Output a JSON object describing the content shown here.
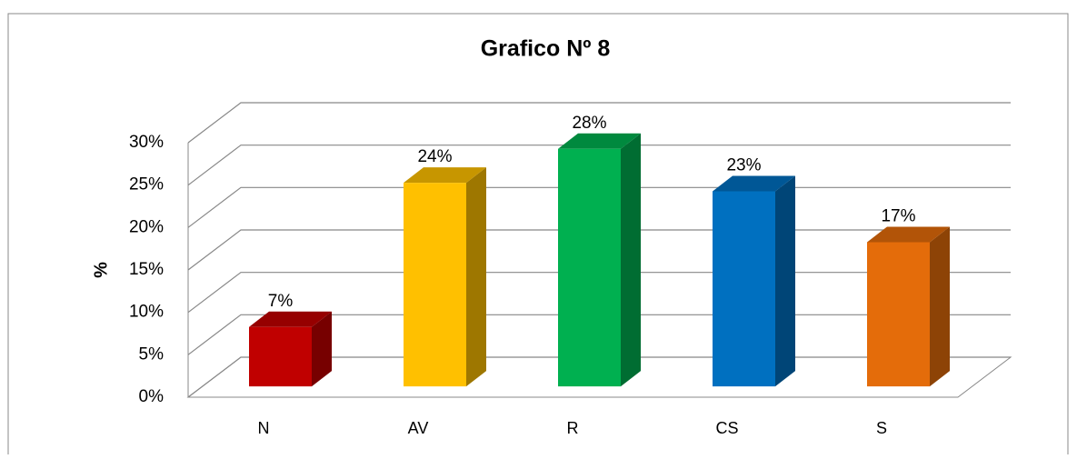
{
  "chart_data": {
    "type": "bar3d",
    "title": "Grafico Nº  8",
    "y_label": "%",
    "categories": [
      "N",
      "AV",
      "R",
      "CS",
      "S"
    ],
    "values": [
      7,
      24,
      28,
      23,
      17
    ],
    "value_labels": [
      "7%",
      "24%",
      "28%",
      "23%",
      "17%"
    ],
    "colors": [
      "#c00000",
      "#ffc000",
      "#00b050",
      "#0070c0",
      "#e46c0a"
    ],
    "ylim": [
      0,
      30
    ],
    "yticks": [
      {
        "value": 0,
        "label": "0%"
      },
      {
        "value": 5,
        "label": "5%"
      },
      {
        "value": 10,
        "label": "10%"
      },
      {
        "value": 15,
        "label": "15%"
      },
      {
        "value": 20,
        "label": "20%"
      },
      {
        "value": 25,
        "label": "25%"
      },
      {
        "value": 30,
        "label": "30%"
      }
    ],
    "grid": true
  }
}
